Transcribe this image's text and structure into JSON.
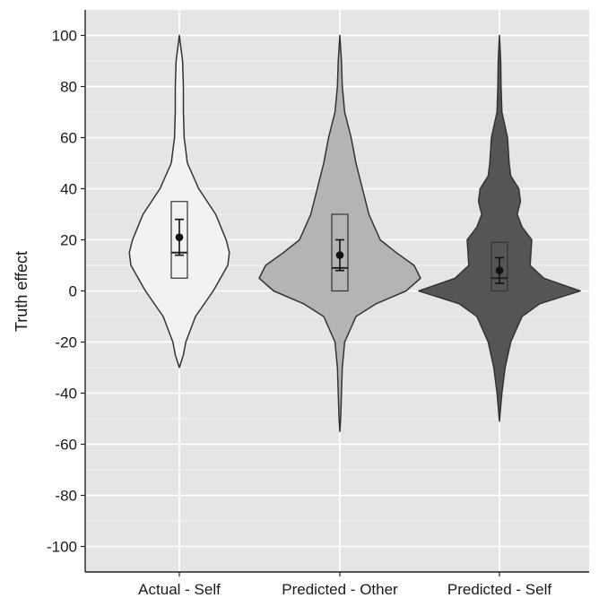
{
  "chart_data": {
    "type": "violin",
    "ylabel": "Truth effect",
    "xlabel": "",
    "categories": [
      "Actual - Self",
      "Predicted - Other",
      "Predicted - Self"
    ],
    "ylim": [
      -110,
      110
    ],
    "yticks": [
      100,
      80,
      60,
      40,
      20,
      0,
      -20,
      -40,
      -60,
      -80,
      -100
    ],
    "grid": true,
    "legend": "none",
    "series": [
      {
        "category": "Actual - Self",
        "fill": "#f2f2f2",
        "min": -30,
        "max": 100,
        "box": {
          "q1": 5,
          "median": 15,
          "q3": 35
        },
        "mean": 21,
        "ci": [
          14,
          28
        ],
        "density": [
          [
            -30,
            0
          ],
          [
            -25,
            0.05
          ],
          [
            -20,
            0.08
          ],
          [
            -10,
            0.2
          ],
          [
            0,
            0.42
          ],
          [
            10,
            0.6
          ],
          [
            15,
            0.62
          ],
          [
            20,
            0.58
          ],
          [
            30,
            0.45
          ],
          [
            40,
            0.24
          ],
          [
            50,
            0.1
          ],
          [
            60,
            0.06
          ],
          [
            70,
            0.05
          ],
          [
            80,
            0.05
          ],
          [
            90,
            0.04
          ],
          [
            100,
            0
          ]
        ]
      },
      {
        "category": "Predicted - Other",
        "fill": "#b4b4b4",
        "min": -55,
        "max": 100,
        "box": {
          "q1": 0,
          "median": 9,
          "q3": 30
        },
        "mean": 14,
        "ci": [
          8,
          20
        ],
        "density": [
          [
            -55,
            0
          ],
          [
            -50,
            0.01
          ],
          [
            -40,
            0.02
          ],
          [
            -30,
            0.03
          ],
          [
            -20,
            0.06
          ],
          [
            -10,
            0.2
          ],
          [
            -5,
            0.45
          ],
          [
            0,
            0.82
          ],
          [
            5,
            1.0
          ],
          [
            10,
            0.92
          ],
          [
            15,
            0.7
          ],
          [
            20,
            0.5
          ],
          [
            30,
            0.36
          ],
          [
            40,
            0.28
          ],
          [
            50,
            0.2
          ],
          [
            60,
            0.14
          ],
          [
            70,
            0.06
          ],
          [
            80,
            0.03
          ],
          [
            90,
            0.02
          ],
          [
            100,
            0
          ]
        ]
      },
      {
        "category": "Predicted - Self",
        "fill": "#555555",
        "min": -51,
        "max": 100,
        "box": {
          "q1": 0,
          "median": 5,
          "q3": 19
        },
        "mean": 8,
        "ci": [
          3,
          13
        ],
        "density": [
          [
            -51,
            0
          ],
          [
            -40,
            0.03
          ],
          [
            -30,
            0.07
          ],
          [
            -20,
            0.14
          ],
          [
            -10,
            0.28
          ],
          [
            -5,
            0.5
          ],
          [
            0,
            1.0
          ],
          [
            5,
            0.55
          ],
          [
            10,
            0.38
          ],
          [
            20,
            0.4
          ],
          [
            25,
            0.28
          ],
          [
            30,
            0.22
          ],
          [
            35,
            0.26
          ],
          [
            40,
            0.24
          ],
          [
            45,
            0.14
          ],
          [
            50,
            0.12
          ],
          [
            60,
            0.1
          ],
          [
            70,
            0.03
          ],
          [
            80,
            0.02
          ],
          [
            90,
            0.015
          ],
          [
            100,
            0
          ]
        ]
      }
    ]
  }
}
